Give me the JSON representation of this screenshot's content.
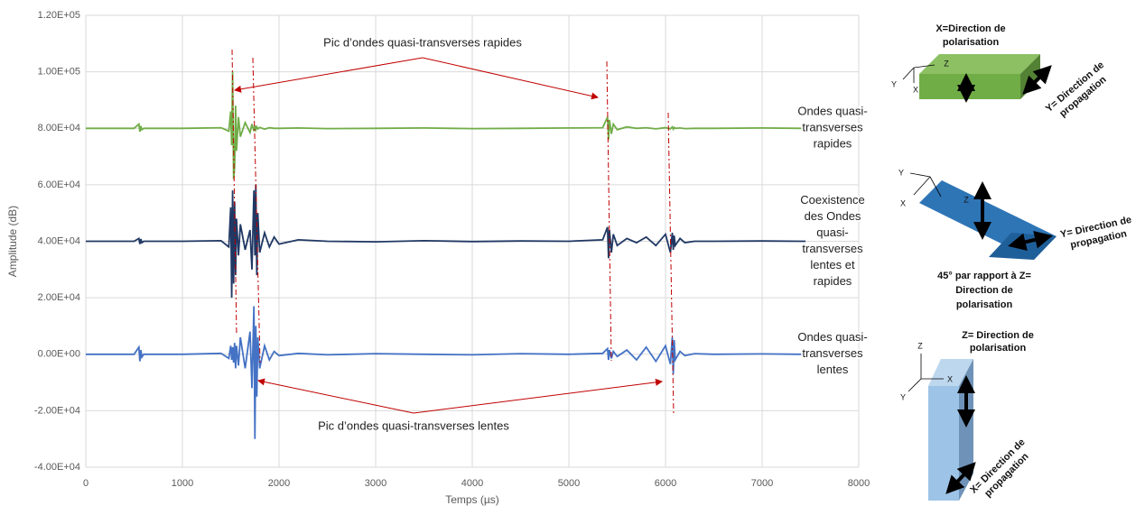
{
  "chart_data": {
    "type": "line",
    "x": [
      0,
      500,
      550,
      560,
      570,
      580,
      600,
      700,
      1000,
      1400,
      1480,
      1500,
      1510,
      1520,
      1530,
      1540,
      1550,
      1560,
      1580,
      1600,
      1650,
      1700,
      1720,
      1740,
      1750,
      1760,
      1770,
      1780,
      1800,
      1850,
      1900,
      1950,
      2000,
      2200,
      2500,
      3000,
      3500,
      4000,
      4500,
      5000,
      5350,
      5400,
      5410,
      5420,
      5440,
      5460,
      5500,
      5600,
      5700,
      5800,
      5900,
      6000,
      6050,
      6070,
      6080,
      6090,
      6100,
      6150,
      6200,
      6300,
      6500,
      7000,
      7400,
      7450
    ],
    "series": [
      {
        "name": [
          "Ondes quasi-",
          "transverses",
          "rapides"
        ],
        "color": "#70ad47",
        "values": [
          80000,
          80000,
          81500,
          78800,
          80800,
          79500,
          80000,
          80000,
          80000,
          80200,
          79000,
          86000,
          74000,
          100000,
          62000,
          66000,
          88000,
          72000,
          84000,
          77000,
          82000,
          78500,
          81500,
          79000,
          81000,
          79500,
          80500,
          79800,
          80300,
          79700,
          80200,
          80000,
          80000,
          80100,
          79900,
          80000,
          80100,
          79900,
          80000,
          80100,
          80200,
          84000,
          76000,
          83000,
          78000,
          81500,
          79500,
          80500,
          80000,
          80200,
          79800,
          80200,
          79800,
          80500,
          79700,
          80300,
          80000,
          80100,
          79900,
          80000,
          80000,
          80100,
          80000,
          80000
        ]
      },
      {
        "name": [
          "Coexistence",
          "des Ondes",
          "quasi-",
          "transverses",
          "lentes et",
          "rapides"
        ],
        "color": "#203864",
        "values": [
          40000,
          40000,
          41000,
          39000,
          40800,
          39500,
          40000,
          40000,
          40000,
          40200,
          38000,
          52000,
          20000,
          58000,
          25000,
          54000,
          28000,
          48000,
          35000,
          46000,
          37000,
          44000,
          30000,
          58000,
          35000,
          60000,
          28000,
          50000,
          36000,
          43000,
          38000,
          41500,
          39000,
          40500,
          40000,
          39800,
          40200,
          39900,
          40100,
          40000,
          40500,
          45000,
          34000,
          44000,
          36000,
          42500,
          38500,
          41000,
          39500,
          41500,
          38500,
          42500,
          36000,
          43000,
          37000,
          42000,
          38500,
          41000,
          39500,
          40000,
          40000,
          40100,
          40000,
          40000
        ]
      },
      {
        "name": [
          "Ondes quasi-",
          "transverses",
          "lentes"
        ],
        "color": "#4472c4",
        "values": [
          0,
          0,
          2500,
          -2500,
          1500,
          -1000,
          0,
          0,
          0,
          300,
          -1500,
          3000,
          -2000,
          2500,
          -3000,
          4000,
          -5000,
          3000,
          -4000,
          6000,
          -5000,
          8000,
          -12000,
          17000,
          -30000,
          10000,
          -15000,
          6000,
          -5000,
          3000,
          -2000,
          1000,
          -500,
          300,
          -200,
          200,
          0,
          -200,
          200,
          0,
          300,
          2000,
          -2000,
          1500,
          -1500,
          1000,
          -800,
          1500,
          -2000,
          2500,
          -2500,
          3000,
          -3500,
          6000,
          -7000,
          5000,
          -2000,
          1000,
          -500,
          200,
          0,
          100,
          0,
          0
        ]
      }
    ],
    "xlim": [
      0,
      8000
    ],
    "xticks": [
      0,
      1000,
      2000,
      3000,
      4000,
      5000,
      6000,
      7000,
      8000
    ],
    "ylim": [
      -40000,
      120000
    ],
    "yticks": [
      {
        "value": -40000,
        "label": "-4.00E+04"
      },
      {
        "value": -20000,
        "label": "-2.00E+04"
      },
      {
        "value": 0,
        "label": "0.00E+00"
      },
      {
        "value": 20000,
        "label": "2.00E+04"
      },
      {
        "value": 40000,
        "label": "4.00E+04"
      },
      {
        "value": 60000,
        "label": "6.00E+04"
      },
      {
        "value": 80000,
        "label": "8.00E+04"
      },
      {
        "value": 100000,
        "label": "1.00E+05"
      },
      {
        "value": 120000,
        "label": "1.20E+05"
      }
    ],
    "xlabel": "Temps (µs)",
    "ylabel": "Amplitude (dB)",
    "grid": true,
    "annotations": [
      "Pic d’ondes quasi-transverses rapides",
      "Pic d’ondes quasi-transverses lentes"
    ]
  },
  "diagrams": [
    {
      "title": [
        "X=Direction de",
        "polarisation"
      ],
      "axes": [
        "Y",
        "X",
        "Z"
      ],
      "propagation": [
        "Y= Direction de",
        "propagation"
      ]
    },
    {
      "axes": [
        "Y",
        "X",
        "Z"
      ],
      "propagation": [
        "Y= Direction de",
        "propagation"
      ],
      "caption": [
        "45° par rapport à Z=",
        "Direction de",
        "polarisation"
      ]
    },
    {
      "title": [
        "Z= Direction de",
        "polarisation"
      ],
      "axes": [
        "Z",
        "X",
        "Y"
      ],
      "propagation": [
        "X= Direction de",
        "propagation"
      ]
    }
  ]
}
